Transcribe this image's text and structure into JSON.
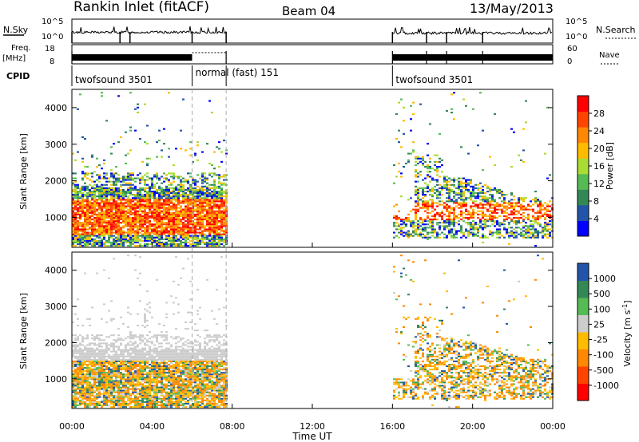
{
  "header": {
    "title": "Rankin Inlet (fitACF)",
    "beam": "Beam 04",
    "date": "13/May/2013"
  },
  "summary": {
    "nsky_label": "N.Sky",
    "nsky_ticks": [
      "10^5",
      "10^0"
    ],
    "nsearch_label": "N.Search",
    "nsearch_ticks": [
      "10^5",
      "10^0"
    ],
    "freq_label": "Freq.",
    "freq_unit": "[MHz]",
    "freq_ticks": [
      "18",
      "8"
    ],
    "nave_label": "Nave",
    "nave_ticks": [
      "60",
      "0"
    ],
    "cpid_label": "CPID",
    "cpid_segments": [
      {
        "label": "twofsound 3501",
        "start_h": 0,
        "end_h": 6
      },
      {
        "label": "normal (fast) 151",
        "start_h": 6,
        "end_h": 7.7
      },
      {
        "label": "twofsound 3501",
        "start_h": 16,
        "end_h": 24
      }
    ]
  },
  "colors": {
    "power_scale": [
      "#0000ff",
      "#2255aa",
      "#338855",
      "#55bb55",
      "#aadd33",
      "#ffbb00",
      "#ff8800",
      "#ff4400",
      "#ff0000"
    ],
    "velocity_scale": [
      "#2255aa",
      "#338855",
      "#55bb55",
      "#cccccc",
      "#ffbb00",
      "#ff8800",
      "#ff4400",
      "#ff0000"
    ]
  },
  "chart_data": [
    {
      "type": "heatmap",
      "name": "power",
      "ylabel": "Slant Range [km]",
      "ylim": [
        180,
        4500
      ],
      "yticks": [
        "1000",
        "2000",
        "3000",
        "4000"
      ],
      "xlim": [
        0,
        24
      ],
      "colorbar_label": "Power [dB]",
      "colorbar_ticks": [
        "4",
        "8",
        "12",
        "16",
        "20",
        "24",
        "28"
      ]
    },
    {
      "type": "heatmap",
      "name": "velocity",
      "ylabel": "Slant Range [km]",
      "ylim": [
        180,
        4500
      ],
      "yticks": [
        "1000",
        "2000",
        "3000",
        "4000"
      ],
      "xlim": [
        0,
        24
      ],
      "xlabel": "Time UT",
      "xticks": [
        "00:00",
        "04:00",
        "08:00",
        "12:00",
        "16:00",
        "20:00",
        "00:00"
      ],
      "colorbar_label": "Velocity [m s",
      "colorbar_unit_sup": "-1",
      "colorbar_unit_end": "]",
      "colorbar_ticks": [
        "1000",
        "500",
        "100",
        "25",
        "-25",
        "-100",
        "-500",
        "-1000"
      ]
    }
  ]
}
